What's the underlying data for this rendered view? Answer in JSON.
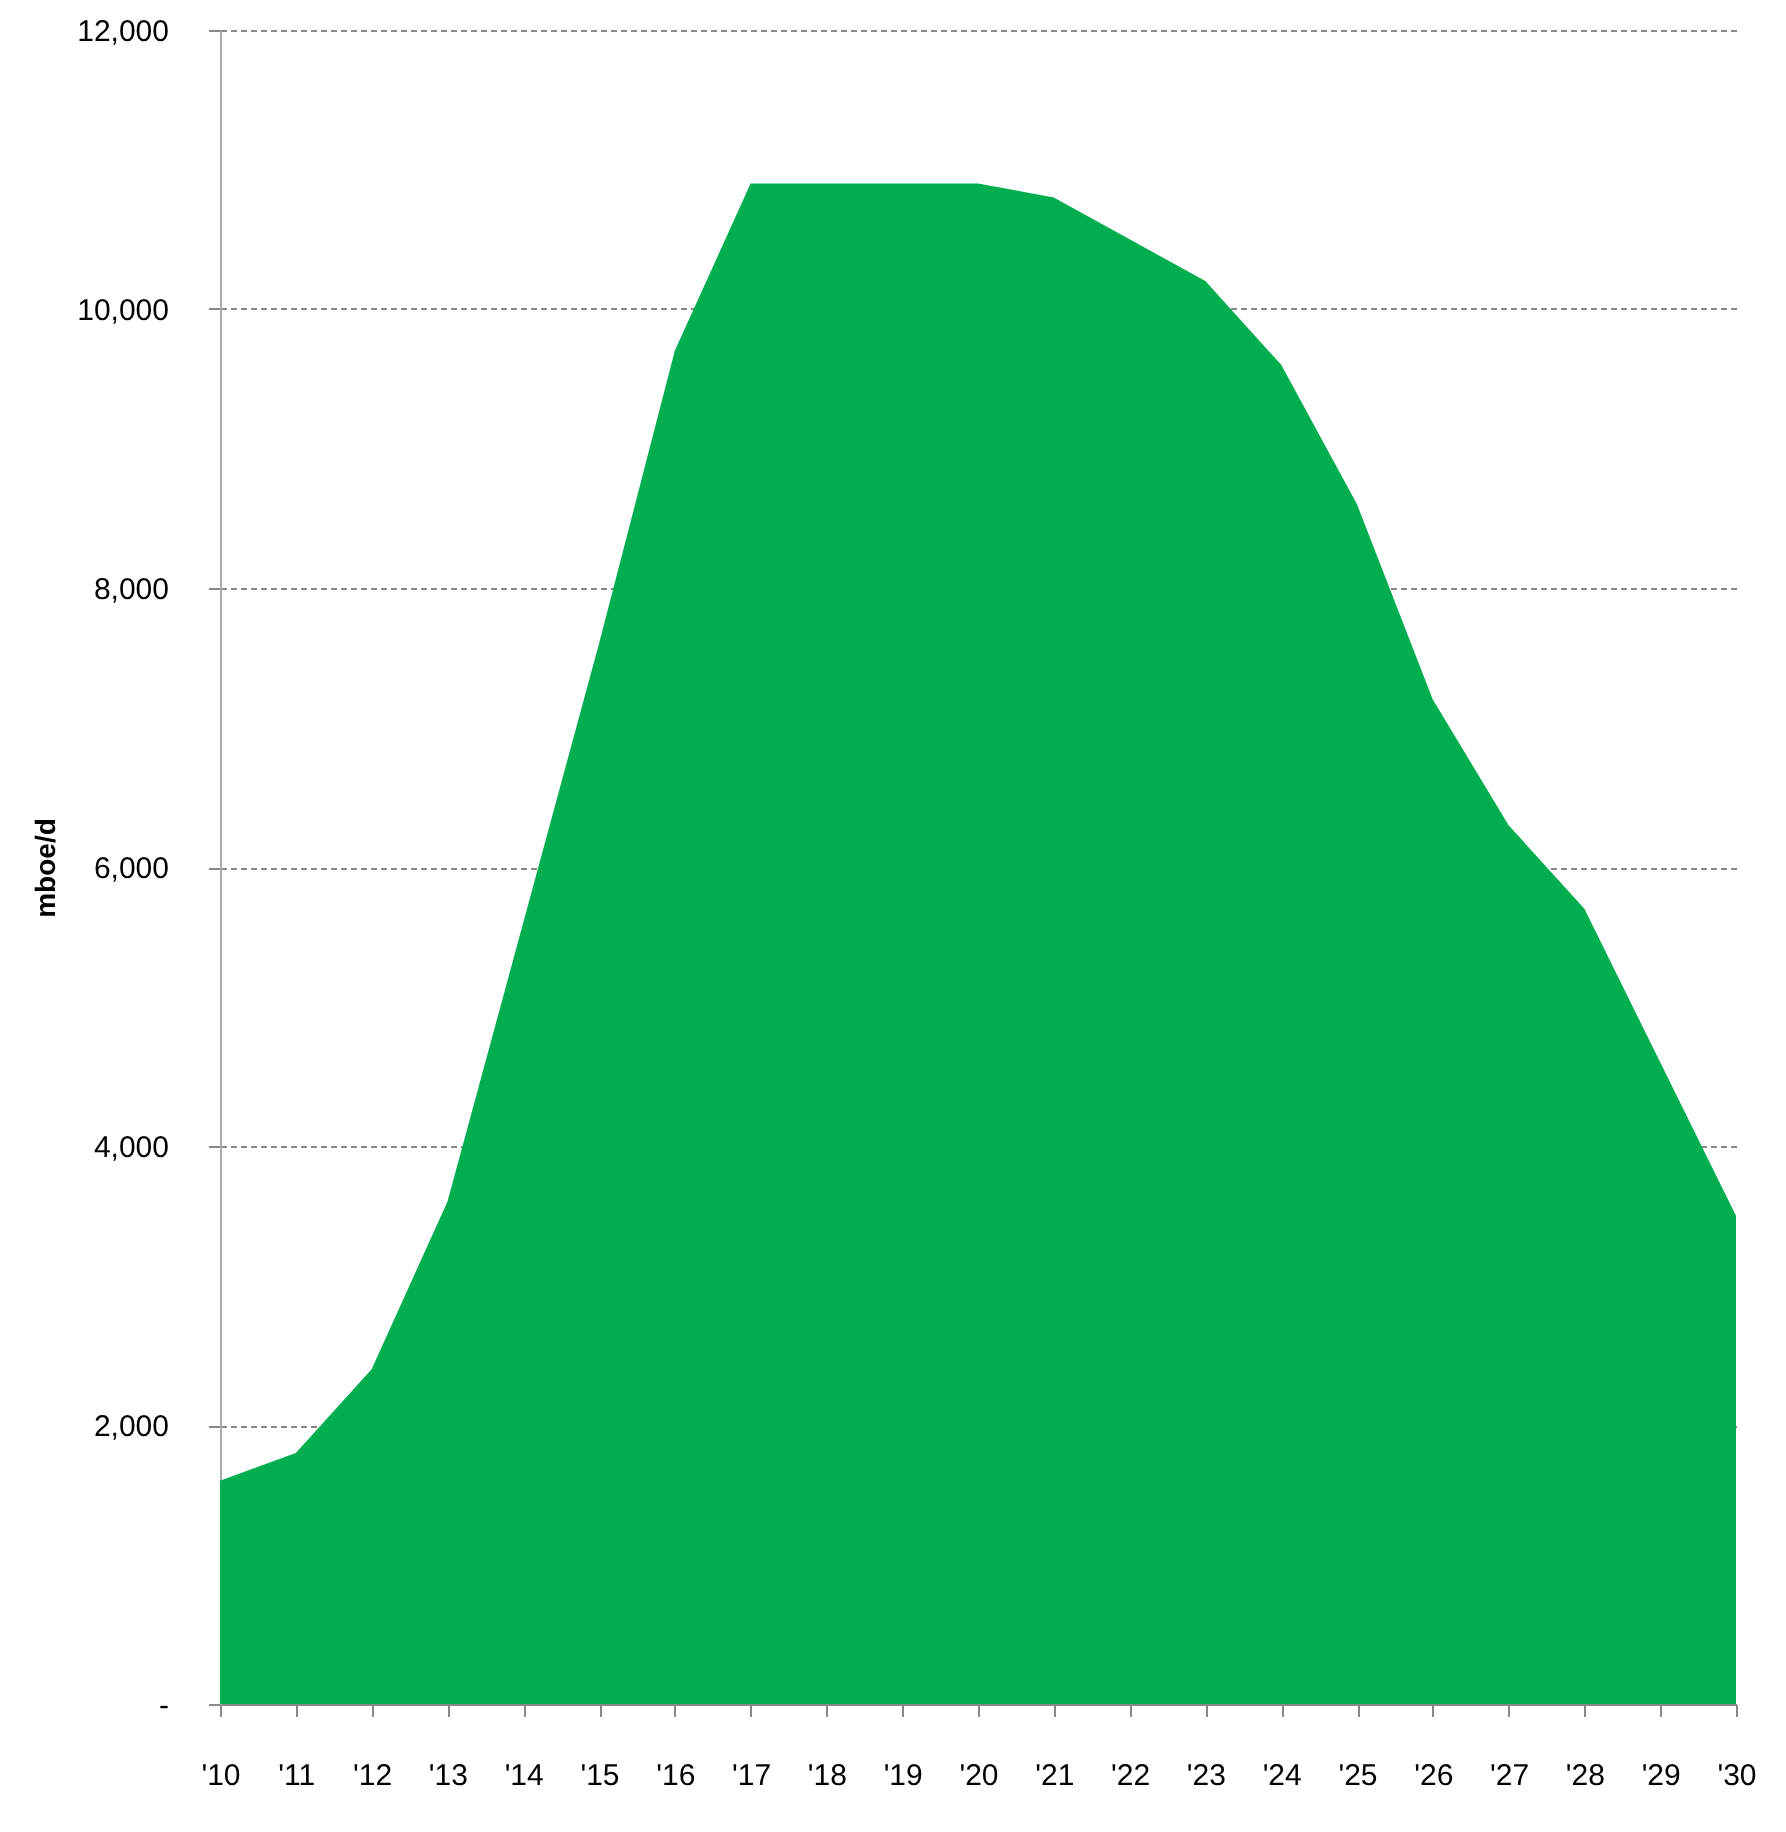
{
  "chart_data": {
    "type": "area",
    "ylabel": "mboe/d",
    "categories": [
      "'10",
      "'11",
      "'12",
      "'13",
      "'14",
      "'15",
      "'16",
      "'17",
      "'18",
      "'19",
      "'20",
      "'21",
      "'22",
      "'23",
      "'24",
      "'25",
      "'26",
      "'27",
      "'28",
      "'29",
      "'30"
    ],
    "series": [
      {
        "color": "#00ae4f",
        "values": [
          1600,
          1800,
          2400,
          3600,
          5600,
          7600,
          9700,
          10900,
          10900,
          10900,
          10900,
          10800,
          10500,
          10200,
          9600,
          8600,
          7200,
          6300,
          5700,
          4600,
          3500
        ]
      }
    ],
    "ylim": [
      0,
      12000
    ],
    "yticks": [
      {
        "value": 0,
        "label": "-"
      },
      {
        "value": 2000,
        "label": "2,000"
      },
      {
        "value": 4000,
        "label": "4,000"
      },
      {
        "value": 6000,
        "label": "6,000"
      },
      {
        "value": 8000,
        "label": "8,000"
      },
      {
        "value": 10000,
        "label": "10,000"
      },
      {
        "value": 12000,
        "label": "12,000"
      }
    ],
    "grid": "y"
  }
}
